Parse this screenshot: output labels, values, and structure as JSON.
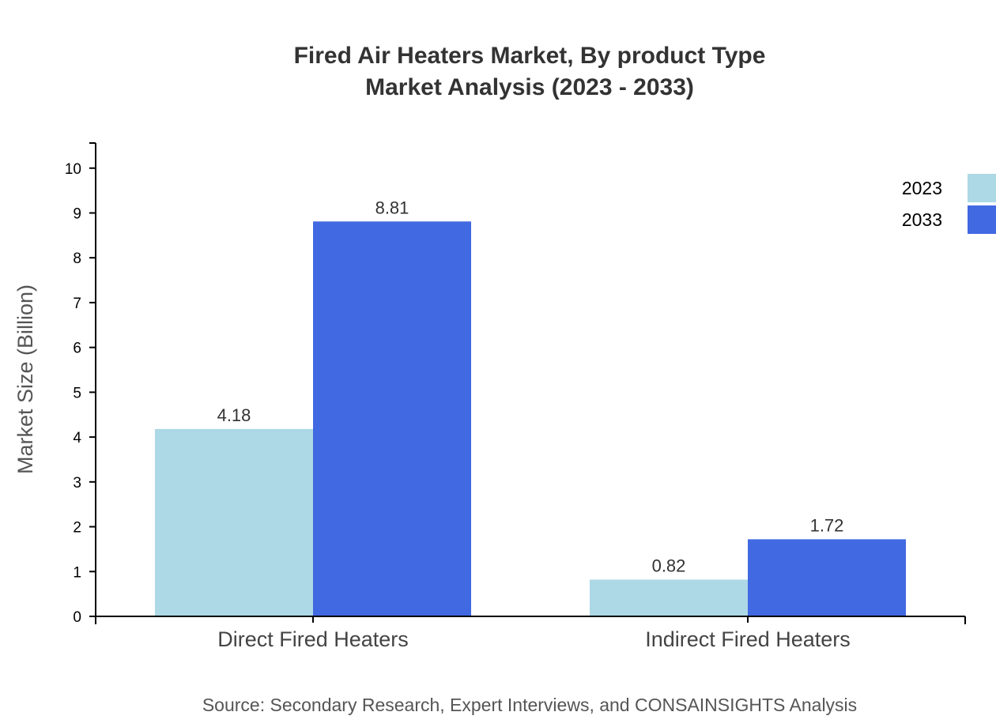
{
  "chart_data": {
    "type": "bar",
    "title": [
      "Fired Air Heaters Market, By product Type",
      "Market Analysis (2023 - 2033)"
    ],
    "xlabel": "",
    "ylabel": "Market Size (Billion)",
    "categories": [
      "Direct Fired Heaters",
      "Indirect Fired Heaters"
    ],
    "series": [
      {
        "name": "2023",
        "values": [
          4.18,
          0.82
        ],
        "color": "#ADD8E6"
      },
      {
        "name": "2033",
        "values": [
          8.81,
          1.72
        ],
        "color": "#4169E1"
      }
    ],
    "ylim": [
      0,
      10.56
    ],
    "yticks": [
      0,
      1,
      2,
      3,
      4,
      5,
      6,
      7,
      8,
      9,
      10
    ],
    "grid": false,
    "legend": "top-right",
    "source": "Source: Secondary Research, Expert Interviews, and CONSAINSIGHTS Analysis"
  }
}
